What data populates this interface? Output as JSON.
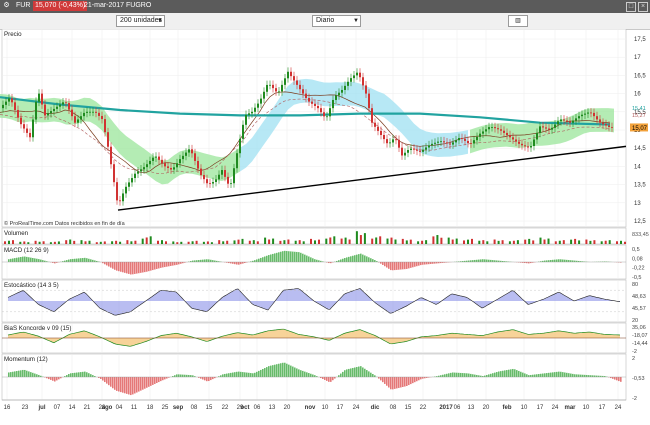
{
  "window": {
    "symbol": "FUR",
    "price": "15,070 (-0,43%)",
    "date_name": "21-mar-2017 FUGRO",
    "menu_icon": "gear-icon",
    "close_icon": "close-icon",
    "maximize_icon": "maximize-icon"
  },
  "toolbar": {
    "units_select": "200 unidades",
    "period_select": "Diario",
    "chart_type_icon": "candlestick-chart-icon"
  },
  "colors": {
    "up": "#1f8a1f",
    "down": "#d13232",
    "cloud_green": "#9be59b",
    "cloud_blue": "#9fe0f2",
    "ma_teal": "#21a3a0",
    "trend": "#000000",
    "histo_up": "#4caf50",
    "histo_down": "#e06060",
    "stoch_blue": "#7f86e6",
    "stoch_red": "#e88a8a",
    "bias_orange": "#f4c16e"
  },
  "panels": {
    "price": {
      "title": "Precio",
      "watermark": "© ProRealTime.com   Datos recibidos en fin de día",
      "current_label": "15,07",
      "extra_labels": [
        "15,41",
        "15,27"
      ]
    },
    "volume": {
      "title": "Volumen",
      "last_label": "833,45"
    },
    "macd": {
      "title": "MACD (12 26 9)",
      "labels": [
        "0,5",
        "0,08",
        "-0,22",
        "-0,5"
      ]
    },
    "stochastic": {
      "title": "Estocástico (14 3 5)",
      "labels": [
        "80",
        "48,63",
        "45,57",
        "20"
      ]
    },
    "bias": {
      "title": "BiaS Koncorde v 09 (15)",
      "labels": [
        "35,06",
        "-18,07",
        "-14,44",
        "-2"
      ]
    },
    "momentum": {
      "title": "Momentum (12)",
      "labels": [
        "2",
        "-0,53",
        "-2"
      ]
    }
  },
  "chart_data": {
    "type": "candlestick",
    "title": "",
    "y_range": [
      12.5,
      17.5
    ],
    "y_ticks": [
      "17,5",
      "17",
      "16,5",
      "16",
      "15,5",
      "15",
      "14,5",
      "14",
      "13,5",
      "13",
      "12,5"
    ],
    "y_tick_values": [
      17.5,
      17,
      16.5,
      16,
      15.5,
      15,
      14.5,
      14,
      13.5,
      13,
      12.5
    ],
    "x_labels": [
      "16",
      "23",
      "jul",
      "07",
      "14",
      "21",
      "28",
      "ago",
      "04",
      "11",
      "18",
      "25",
      "sep",
      "08",
      "15",
      "22",
      "29",
      "oct",
      "06",
      "13",
      "20",
      "nov",
      "10",
      "17",
      "24",
      "dic",
      "08",
      "15",
      "22",
      "2017",
      "06",
      "13",
      "20",
      "feb",
      "10",
      "17",
      "24",
      "mar",
      "10",
      "17",
      "24"
    ],
    "x_label_positions": [
      7,
      25,
      42,
      57,
      72,
      87,
      102,
      107,
      119,
      134,
      150,
      165,
      178,
      194,
      209,
      225,
      240,
      245,
      257,
      272,
      287,
      310,
      325,
      340,
      356,
      375,
      393,
      408,
      423,
      446,
      457,
      471,
      486,
      507,
      524,
      540,
      555,
      570,
      586,
      602,
      618
    ],
    "price_path": [
      [
        0,
        15.6
      ],
      [
        10,
        15.9
      ],
      [
        20,
        15.2
      ],
      [
        30,
        14.8
      ],
      [
        38,
        16.1
      ],
      [
        45,
        15.4
      ],
      [
        55,
        15.6
      ],
      [
        65,
        15.8
      ],
      [
        75,
        15.2
      ],
      [
        85,
        15.5
      ],
      [
        95,
        15.5
      ],
      [
        102,
        15.3
      ],
      [
        107,
        14.7
      ],
      [
        112,
        13.9
      ],
      [
        118,
        12.9
      ],
      [
        125,
        13.4
      ],
      [
        135,
        13.8
      ],
      [
        145,
        14.0
      ],
      [
        155,
        14.3
      ],
      [
        165,
        14.0
      ],
      [
        172,
        13.9
      ],
      [
        180,
        14.2
      ],
      [
        190,
        14.5
      ],
      [
        200,
        13.8
      ],
      [
        208,
        13.5
      ],
      [
        215,
        13.6
      ],
      [
        222,
        13.9
      ],
      [
        230,
        13.4
      ],
      [
        238,
        14.5
      ],
      [
        245,
        15.4
      ],
      [
        252,
        15.5
      ],
      [
        260,
        15.8
      ],
      [
        268,
        16.3
      ],
      [
        278,
        16.0
      ],
      [
        288,
        16.6
      ],
      [
        298,
        16.2
      ],
      [
        308,
        15.8
      ],
      [
        318,
        15.6
      ],
      [
        326,
        15.3
      ],
      [
        334,
        15.9
      ],
      [
        342,
        16.1
      ],
      [
        350,
        16.4
      ],
      [
        358,
        16.6
      ],
      [
        366,
        16.0
      ],
      [
        372,
        15.2
      ],
      [
        380,
        14.9
      ],
      [
        388,
        14.6
      ],
      [
        395,
        14.8
      ],
      [
        402,
        14.3
      ],
      [
        410,
        14.5
      ],
      [
        420,
        14.4
      ],
      [
        430,
        14.6
      ],
      [
        440,
        14.7
      ],
      [
        450,
        14.6
      ],
      [
        460,
        14.8
      ],
      [
        470,
        14.6
      ],
      [
        480,
        14.9
      ],
      [
        490,
        15.1
      ],
      [
        500,
        15.0
      ],
      [
        510,
        14.8
      ],
      [
        520,
        14.6
      ],
      [
        530,
        14.5
      ],
      [
        540,
        15.1
      ],
      [
        550,
        15.0
      ],
      [
        560,
        15.3
      ],
      [
        570,
        15.2
      ],
      [
        580,
        15.4
      ],
      [
        590,
        15.5
      ],
      [
        600,
        15.2
      ],
      [
        610,
        15.07
      ]
    ],
    "ma_long": [
      [
        0,
        15.9
      ],
      [
        60,
        15.7
      ],
      [
        120,
        15.55
      ],
      [
        180,
        15.45
      ],
      [
        240,
        15.4
      ],
      [
        300,
        15.4
      ],
      [
        360,
        15.45
      ],
      [
        420,
        15.45
      ],
      [
        480,
        15.35
      ],
      [
        540,
        15.2
      ],
      [
        610,
        15.15
      ]
    ],
    "trendline": [
      [
        118,
        12.8
      ],
      [
        626,
        14.55
      ]
    ],
    "volume": [
      0.3,
      0.2,
      0.25,
      0.2,
      0.35,
      0.3,
      0.2,
      0.25,
      0.3,
      0.6,
      0.3,
      0.2,
      0.25,
      0.2,
      0.3,
      0.4,
      0.3,
      0.5,
      0.35,
      0.3,
      0.4,
      0.6,
      0.5,
      1.0,
      0.6,
      0.5,
      0.4,
      0.3,
      0.7,
      0.5,
      0.4,
      0.3,
      0.35,
      0.3,
      0.4,
      0.5,
      0.3,
      0.4,
      0.35,
      0.3,
      0.25
    ],
    "macd_hist": [
      0.1,
      0.2,
      0.1,
      -0.05,
      0.1,
      0.15,
      0.0,
      -0.3,
      -0.45,
      -0.35,
      -0.2,
      -0.1,
      0.05,
      0.1,
      0.0,
      -0.1,
      0.05,
      0.25,
      0.4,
      0.35,
      0.1,
      -0.05,
      0.15,
      0.3,
      0.05,
      -0.3,
      -0.25,
      -0.1,
      -0.05,
      0.0,
      0.05,
      0.1,
      0.05,
      0.0,
      -0.05,
      0.05,
      0.1,
      0.05,
      0.0,
      0.02,
      -0.02
    ],
    "stoch": [
      60,
      80,
      40,
      20,
      55,
      75,
      30,
      10,
      20,
      50,
      80,
      75,
      30,
      20,
      60,
      85,
      40,
      25,
      80,
      85,
      50,
      25,
      70,
      85,
      45,
      15,
      35,
      60,
      40,
      70,
      60,
      30,
      55,
      80,
      40,
      55,
      75,
      50,
      65,
      55,
      48
    ],
    "bias": [
      5,
      10,
      3,
      -8,
      6,
      12,
      2,
      -10,
      -14,
      -6,
      4,
      8,
      2,
      -6,
      3,
      9,
      5,
      12,
      15,
      6,
      2,
      -4,
      8,
      14,
      4,
      -10,
      -6,
      2,
      4,
      8,
      6,
      4,
      10,
      14,
      6,
      8,
      12,
      8,
      10,
      6,
      5
    ],
    "momentum": [
      0.5,
      0.8,
      0.2,
      -0.5,
      0.4,
      0.6,
      -0.2,
      -1.5,
      -2.0,
      -1.2,
      -0.4,
      0.3,
      0.2,
      -0.5,
      0.3,
      0.6,
      0.4,
      1.2,
      1.6,
      0.8,
      0.2,
      -0.6,
      0.8,
      1.2,
      0.1,
      -1.4,
      -1.0,
      -0.2,
      0.1,
      0.5,
      0.4,
      0.1,
      0.6,
      0.9,
      0.2,
      0.4,
      0.6,
      0.3,
      0.2,
      0.1,
      -0.53
    ]
  }
}
